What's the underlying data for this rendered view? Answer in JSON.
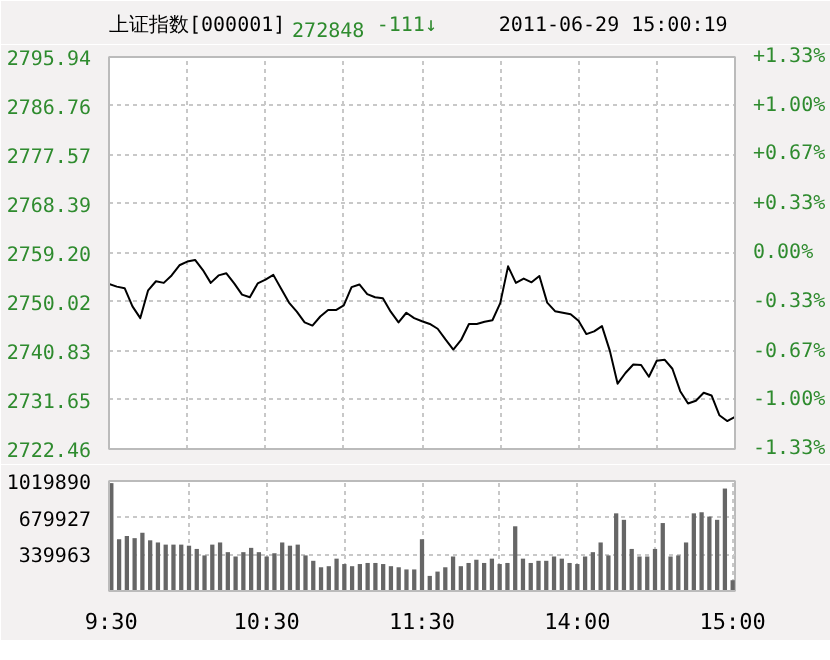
{
  "chart_data": [
    {
      "type": "line",
      "title": "上证指数[000001]",
      "annotations": [
        "272848",
        "-111↓",
        "2011-06-29 15:00:19"
      ],
      "categories": [
        null,
        null,
        null,
        null,
        null,
        null,
        null,
        null,
        null,
        null,
        null,
        null,
        null,
        null,
        null,
        null,
        null,
        null,
        null,
        null,
        null,
        null,
        null,
        null,
        null,
        null,
        null,
        null,
        null,
        null,
        null,
        null,
        null,
        null,
        null,
        null,
        null,
        null,
        null,
        null,
        null,
        null,
        null,
        null,
        null,
        null,
        null,
        null,
        null,
        null,
        null,
        null,
        null,
        null,
        null,
        null,
        null,
        null,
        null,
        null,
        null,
        null,
        null,
        null,
        null,
        null,
        null,
        null,
        null,
        null,
        null,
        null,
        null,
        null,
        null,
        null,
        null,
        null,
        null,
        null,
        null
      ],
      "series": [
        {
          "color": "#000000",
          "values": [
            2753.4,
            2752.9,
            2752.6,
            2749.2,
            2747.0,
            2752.2,
            2753.9,
            2753.6,
            2755.0,
            2756.9,
            2757.6,
            2757.9,
            2756.0,
            2753.6,
            2755.0,
            2755.4,
            2753.5,
            2751.4,
            2750.9,
            2753.5,
            2754.2,
            2755.1,
            2752.5,
            2749.9,
            2748.2,
            2746.2,
            2745.6,
            2747.3,
            2748.5,
            2748.5,
            2749.4,
            2752.8,
            2753.3,
            2751.5,
            2750.9,
            2750.7,
            2748.2,
            2746.2,
            2748.0,
            2747.0,
            2746.4,
            2745.9,
            2745.0,
            2743.0,
            2741.1,
            2742.9,
            2745.9,
            2745.9,
            2746.3,
            2746.6,
            2749.8,
            2756.7,
            2753.6,
            2754.4,
            2753.7,
            2754.9,
            2749.9,
            2748.3,
            2748.0,
            2747.7,
            2746.5,
            2744.0,
            2744.5,
            2745.5,
            2740.9,
            2734.7,
            2736.7,
            2738.3,
            2738.2,
            2736.0,
            2739.0,
            2739.2,
            2737.5,
            2733.3,
            2731.0,
            2731.5,
            2733.0,
            2732.5,
            2728.8,
            2727.7,
            2728.5
          ]
        }
      ],
      "ylim": [
        2722.46,
        2795.94
      ],
      "yticks": [
        2722.46,
        2731.65,
        2740.83,
        2750.02,
        {
          "value": 2759.2,
          "label": "2759.20"
        },
        2768.39,
        2777.57,
        2786.76,
        2795.94
      ],
      "y2lim": [
        -1.33,
        1.33
      ],
      "y2ticks": [
        {
          "value": -1.33,
          "label": "-1.33%"
        },
        {
          "value": -1.0,
          "label": "-1.00%"
        },
        {
          "value": -0.67,
          "label": "-0.67%"
        },
        {
          "value": -0.33,
          "label": "-0.33%"
        },
        {
          "value": 0,
          "label": "0.00%"
        },
        {
          "value": 0.33,
          "label": "+0.33%"
        },
        {
          "value": 0.67,
          "label": "+0.67%"
        },
        {
          "value": 1.0,
          "label": "+1.00%"
        },
        {
          "value": 1.33,
          "label": "+1.33%"
        }
      ],
      "tick_labels": "y",
      "grid": true
    },
    {
      "type": "bar",
      "color": "#666666",
      "categories": [
        "9:30",
        null,
        null,
        null,
        null,
        null,
        null,
        null,
        null,
        null,
        null,
        null,
        null,
        null,
        null,
        null,
        null,
        null,
        null,
        null,
        "10:30",
        null,
        null,
        null,
        null,
        null,
        null,
        null,
        null,
        null,
        null,
        null,
        null,
        null,
        null,
        null,
        null,
        null,
        null,
        null,
        "11:30",
        null,
        null,
        null,
        null,
        null,
        null,
        null,
        null,
        null,
        null,
        null,
        null,
        null,
        null,
        null,
        null,
        null,
        null,
        null,
        "14:00",
        null,
        null,
        null,
        null,
        null,
        null,
        null,
        null,
        null,
        null,
        null,
        null,
        null,
        null,
        null,
        null,
        null,
        null,
        null,
        "15:00"
      ],
      "values": [
        1000000,
        480000,
        510000,
        490000,
        540000,
        470000,
        450000,
        430000,
        430000,
        430000,
        420000,
        390000,
        330000,
        430000,
        450000,
        360000,
        320000,
        360000,
        400000,
        360000,
        320000,
        350000,
        450000,
        420000,
        430000,
        330000,
        280000,
        220000,
        230000,
        300000,
        250000,
        230000,
        250000,
        260000,
        260000,
        250000,
        230000,
        220000,
        200000,
        200000,
        480000,
        140000,
        180000,
        220000,
        320000,
        230000,
        260000,
        290000,
        260000,
        300000,
        250000,
        260000,
        600000,
        300000,
        260000,
        280000,
        280000,
        320000,
        300000,
        260000,
        250000,
        320000,
        360000,
        450000,
        330000,
        720000,
        660000,
        390000,
        320000,
        320000,
        390000,
        630000,
        320000,
        330000,
        450000,
        720000,
        730000,
        690000,
        660000,
        950000,
        100000
      ],
      "ylim": [
        0,
        1019890
      ],
      "yticks": [
        339963,
        679927,
        1019890
      ],
      "grid": true
    }
  ]
}
